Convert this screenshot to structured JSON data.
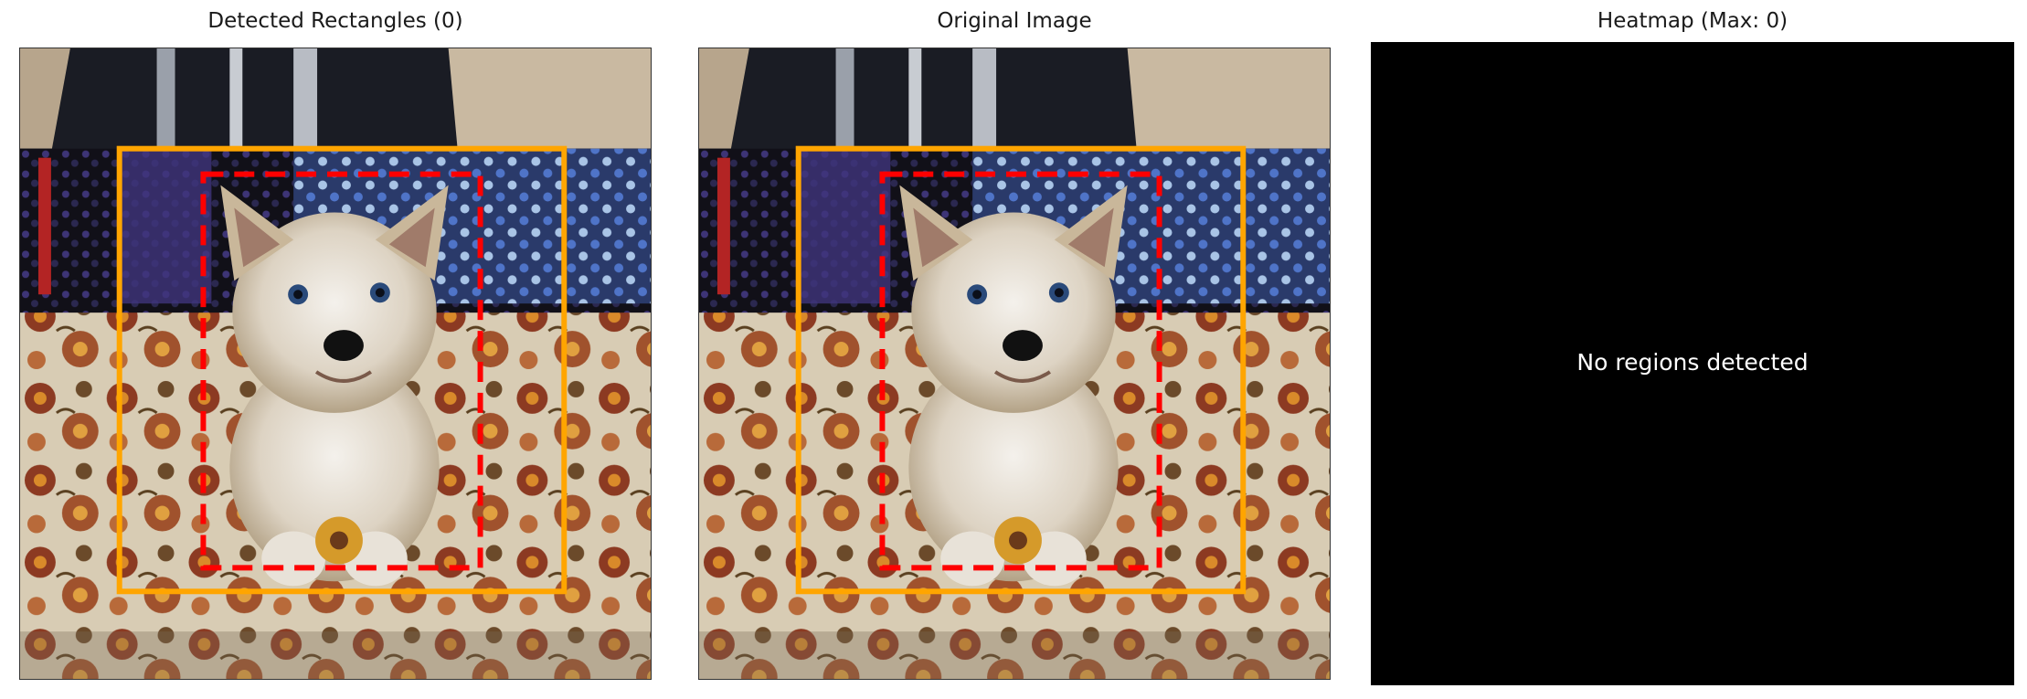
{
  "panels": [
    {
      "title": "Detected Rectangles (0)"
    },
    {
      "title": "Original Image"
    },
    {
      "title": "Heatmap (Max: 0)",
      "message": "No regions detected"
    }
  ],
  "colors": {
    "outer_box": "#ffa500",
    "inner_box": "#ff0000",
    "heatmap_bg": "#000000"
  },
  "icons": [
    "dog-photo"
  ]
}
